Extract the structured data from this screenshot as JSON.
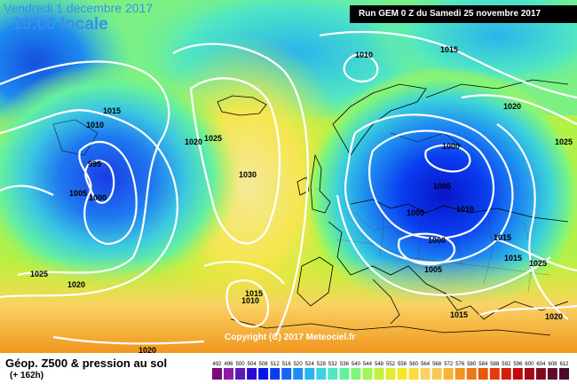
{
  "header": {
    "date": "Vendredi 1 decembre 2017",
    "time": "19:00 locale",
    "run": "Run GEM 0 Z du Samedi 25 novembre 2017"
  },
  "footer": {
    "title": "Géop. Z500 & pression au sol",
    "subtitle": "(+ 162h)",
    "copyright": "Copyright (C) 2017 Meteociel.fr"
  },
  "legend": {
    "values": [
      "492",
      "496",
      "500",
      "504",
      "508",
      "512",
      "516",
      "520",
      "524",
      "528",
      "532",
      "536",
      "540",
      "544",
      "548",
      "552",
      "556",
      "560",
      "564",
      "568",
      "572",
      "576",
      "580",
      "584",
      "588",
      "592",
      "596",
      "600",
      "604",
      "608",
      "612"
    ],
    "colors": [
      "#7a0a7a",
      "#8b1ea0",
      "#5a1ab4",
      "#2a0ad0",
      "#0a14e6",
      "#0a3cf0",
      "#1464f0",
      "#1e8cf0",
      "#2ab4ec",
      "#3cd2dc",
      "#50e6c4",
      "#64f0a0",
      "#82f578",
      "#a0f550",
      "#c3f03c",
      "#e1eb32",
      "#f5e628",
      "#fadc3c",
      "#fad264",
      "#f5c850",
      "#f5b432",
      "#f0961e",
      "#eb7814",
      "#e65a0a",
      "#e13c0a",
      "#d21e0a",
      "#be0a0a",
      "#a00a14",
      "#820a1e",
      "#640a28",
      "#4b0a28"
    ]
  },
  "isobars": [
    {
      "label": "1015",
      "name": "isobar-label-1015-a"
    },
    {
      "label": "1010",
      "name": "isobar-label-1010-a"
    },
    {
      "label": "995",
      "name": "isobar-label-995"
    },
    {
      "label": "1005",
      "name": "isobar-label-1005-a"
    },
    {
      "label": "1000",
      "name": "isobar-label-1000-a"
    },
    {
      "label": "1025",
      "name": "isobar-label-1025-a"
    },
    {
      "label": "1020",
      "name": "isobar-label-1020-a"
    },
    {
      "label": "1020",
      "name": "isobar-label-1020-b"
    },
    {
      "label": "1025",
      "name": "isobar-label-1025-b"
    },
    {
      "label": "1030",
      "name": "isobar-label-1030"
    },
    {
      "label": "1010",
      "name": "isobar-label-1010-b"
    },
    {
      "label": "1015",
      "name": "isobar-label-1015-b"
    },
    {
      "label": "1020",
      "name": "isobar-label-1020-c"
    },
    {
      "label": "1025",
      "name": "isobar-label-1025-c"
    },
    {
      "label": "1000",
      "name": "isobar-label-1000-b"
    },
    {
      "label": "1005",
      "name": "isobar-label-1005-b"
    },
    {
      "label": "1005",
      "name": "isobar-label-1005-c"
    },
    {
      "label": "1010",
      "name": "isobar-label-1010-c"
    },
    {
      "label": "1000",
      "name": "isobar-label-1000-c"
    },
    {
      "label": "1005",
      "name": "isobar-label-1005-d"
    },
    {
      "label": "1015",
      "name": "isobar-label-1015-c"
    },
    {
      "label": "1015",
      "name": "isobar-label-1015-d"
    },
    {
      "label": "1015",
      "name": "isobar-label-1015-e"
    },
    {
      "label": "1015",
      "name": "isobar-label-1015-f"
    },
    {
      "label": "1010",
      "name": "isobar-label-1010-d"
    },
    {
      "label": "1020",
      "name": "isobar-label-1020-d"
    },
    {
      "label": "1020",
      "name": "isobar-label-1020-e"
    },
    {
      "label": "1025",
      "name": "isobar-label-1025-d"
    }
  ]
}
